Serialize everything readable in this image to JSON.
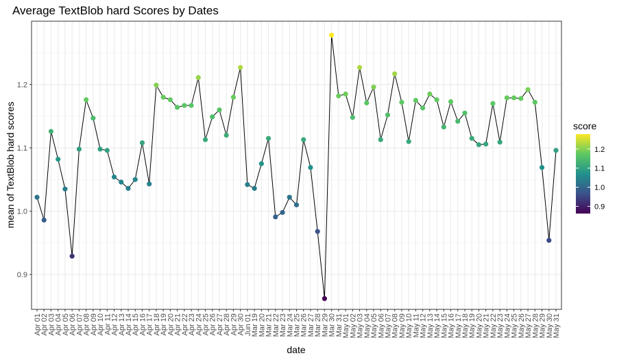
{
  "chart_data": {
    "type": "line",
    "title": "Average TextBlob hard Scores by Dates",
    "xlabel": "date",
    "ylabel": "mean of TextBlob hard scores",
    "ylim": [
      0.845,
      1.3
    ],
    "yticks": [
      0.9,
      1.0,
      1.1,
      1.2
    ],
    "ytick_labels": [
      "0.9",
      "1.0",
      "1.1",
      "1.2"
    ],
    "grid": true,
    "legend": {
      "title": "score",
      "position": "right",
      "ticks": [
        0.9,
        1.0,
        1.1,
        1.2
      ],
      "tick_labels": [
        "0.9",
        "1.0",
        "1.1",
        "1.2"
      ],
      "range": [
        0.862,
        1.278
      ]
    },
    "colormap": [
      "#440154",
      "#3b528b",
      "#21918c",
      "#5ec962",
      "#fde725"
    ],
    "line_color": "#000000",
    "categories": [
      "Apr 01",
      "Apr 02",
      "Apr 03",
      "Apr 04",
      "Apr 05",
      "Apr 06",
      "Apr 07",
      "Apr 08",
      "Apr 09",
      "Apr 10",
      "Apr 11",
      "Apr 12",
      "Apr 13",
      "Apr 14",
      "Apr 15",
      "Apr 16",
      "Apr 17",
      "Apr 18",
      "Apr 19",
      "Apr 20",
      "Apr 21",
      "Apr 22",
      "Apr 23",
      "Apr 24",
      "Apr 25",
      "Apr 26",
      "Apr 27",
      "Apr 28",
      "Apr 29",
      "Apr 30",
      "Jun 01",
      "Mar 19",
      "Mar 20",
      "Mar 21",
      "Mar 22",
      "Mar 23",
      "Mar 24",
      "Mar 25",
      "Mar 26",
      "Mar 27",
      "Mar 28",
      "Mar 29",
      "Mar 30",
      "Mar 31",
      "May 01",
      "May 02",
      "May 03",
      "May 04",
      "May 05",
      "May 06",
      "May 07",
      "May 08",
      "May 09",
      "May 10",
      "May 11",
      "May 12",
      "May 13",
      "May 14",
      "May 15",
      "May 16",
      "May 17",
      "May 18",
      "May 19",
      "May 20",
      "May 21",
      "May 22",
      "May 23",
      "May 24",
      "May 25",
      "May 26",
      "May 27",
      "May 28",
      "May 29",
      "May 30",
      "May 31"
    ],
    "values": [
      1.022,
      0.986,
      1.126,
      1.082,
      1.035,
      0.929,
      1.098,
      1.176,
      1.147,
      1.098,
      1.096,
      1.054,
      1.046,
      1.036,
      1.05,
      1.108,
      1.043,
      1.199,
      1.18,
      1.176,
      1.164,
      1.167,
      1.167,
      1.211,
      1.113,
      1.149,
      1.16,
      1.12,
      1.18,
      1.227,
      1.042,
      1.036,
      1.075,
      1.115,
      0.991,
      0.998,
      1.022,
      1.01,
      1.113,
      1.069,
      0.968,
      0.862,
      1.278,
      1.182,
      1.185,
      1.148,
      1.227,
      1.171,
      1.196,
      1.113,
      1.152,
      1.217,
      1.172,
      1.11,
      1.175,
      1.163,
      1.185,
      1.176,
      1.133,
      1.173,
      1.142,
      1.155,
      1.115,
      1.105,
      1.106,
      1.17,
      1.109,
      1.179,
      1.179,
      1.178,
      1.192,
      1.172,
      1.069,
      0.954,
      1.096
    ]
  }
}
